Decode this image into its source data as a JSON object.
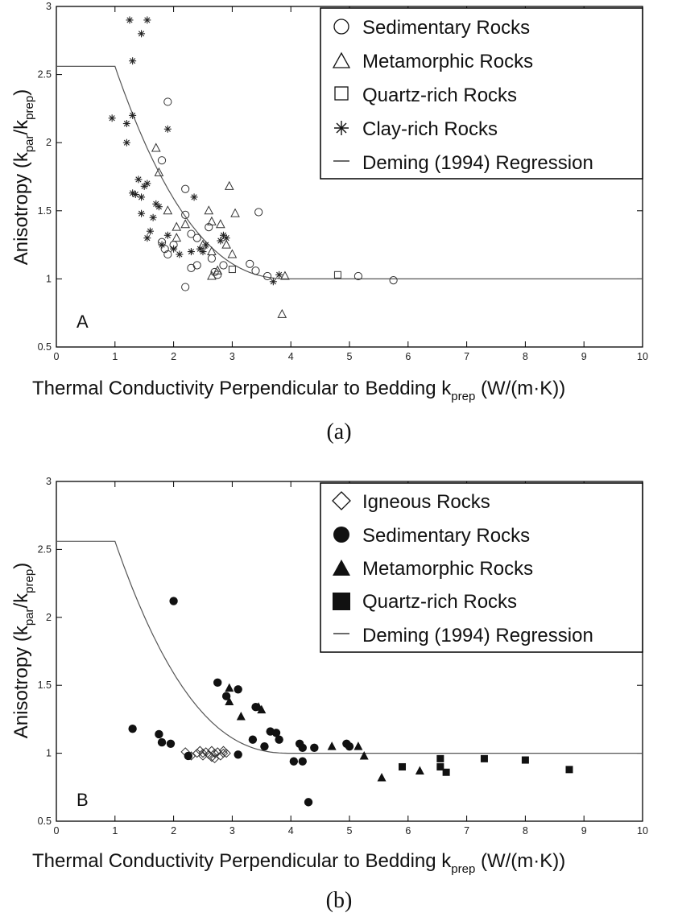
{
  "charts": [
    {
      "id": "a",
      "type": "scatter",
      "panel_label": "A",
      "caption": "(a)",
      "xlabel": {
        "main": "Thermal Conductivity Perpendicular to Bedding k",
        "sub": "prep",
        "tail": " (W/(m·K))"
      },
      "ylabel": {
        "main": "Anisotropy (k",
        "sub1": "par",
        "mid": "/k",
        "sub2": "prep",
        "tail": ")"
      },
      "xlim": [
        0,
        10
      ],
      "ylim": [
        0.5,
        3
      ],
      "xticks": [
        "0",
        "1",
        "2",
        "3",
        "4",
        "5",
        "6",
        "7",
        "8",
        "9",
        "10"
      ],
      "yticks": [
        "0.5",
        "1",
        "1.5",
        "2",
        "2.5",
        "3"
      ],
      "legend": [
        {
          "symbol": "circle-open",
          "label": "Sedimentary Rocks"
        },
        {
          "symbol": "triangle-open",
          "label": "Metamorphic Rocks"
        },
        {
          "symbol": "square-open",
          "label": "Quartz-rich Rocks"
        },
        {
          "symbol": "star",
          "label": "Clay-rich Rocks"
        },
        {
          "symbol": "line",
          "label": "Deming (1994) Regression"
        }
      ],
      "series": [
        {
          "name": "Sedimentary Rocks",
          "marker": "circle-open",
          "points": [
            [
              1.9,
              2.3
            ],
            [
              1.8,
              1.87
            ],
            [
              2.2,
              1.66
            ],
            [
              2.2,
              1.47
            ],
            [
              1.8,
              1.27
            ],
            [
              1.85,
              1.22
            ],
            [
              1.9,
              1.18
            ],
            [
              2.0,
              1.25
            ],
            [
              2.3,
              1.33
            ],
            [
              2.4,
              1.3
            ],
            [
              2.3,
              1.08
            ],
            [
              2.4,
              1.1
            ],
            [
              2.65,
              1.15
            ],
            [
              2.7,
              1.05
            ],
            [
              2.75,
              1.03
            ],
            [
              2.85,
              1.1
            ],
            [
              2.2,
              0.94
            ],
            [
              2.6,
              1.38
            ],
            [
              3.3,
              1.11
            ],
            [
              3.4,
              1.06
            ],
            [
              3.45,
              1.49
            ],
            [
              3.6,
              1.02
            ],
            [
              5.15,
              1.02
            ],
            [
              5.75,
              0.99
            ]
          ]
        },
        {
          "name": "Metamorphic Rocks",
          "marker": "triangle-open",
          "points": [
            [
              1.7,
              1.96
            ],
            [
              1.75,
              1.78
            ],
            [
              1.9,
              1.5
            ],
            [
              2.05,
              1.38
            ],
            [
              2.05,
              1.3
            ],
            [
              2.2,
              1.4
            ],
            [
              2.6,
              1.5
            ],
            [
              2.65,
              1.42
            ],
            [
              2.8,
              1.4
            ],
            [
              2.5,
              1.25
            ],
            [
              2.65,
              1.2
            ],
            [
              2.9,
              1.25
            ],
            [
              2.95,
              1.68
            ],
            [
              3.05,
              1.48
            ],
            [
              2.65,
              1.02
            ],
            [
              2.75,
              1.06
            ],
            [
              3.0,
              1.18
            ],
            [
              3.9,
              1.02
            ],
            [
              3.85,
              0.74
            ]
          ]
        },
        {
          "name": "Quartz-rich Rocks",
          "marker": "square-open",
          "points": [
            [
              3.0,
              1.07
            ],
            [
              4.8,
              1.03
            ]
          ]
        },
        {
          "name": "Clay-rich Rocks",
          "marker": "star",
          "points": [
            [
              1.25,
              2.9
            ],
            [
              1.45,
              2.8
            ],
            [
              1.55,
              2.9
            ],
            [
              1.3,
              2.6
            ],
            [
              0.95,
              2.18
            ],
            [
              1.2,
              2.14
            ],
            [
              1.3,
              2.2
            ],
            [
              1.2,
              2.0
            ],
            [
              1.9,
              2.1
            ],
            [
              1.3,
              1.63
            ],
            [
              1.4,
              1.73
            ],
            [
              1.5,
              1.68
            ],
            [
              1.55,
              1.7
            ],
            [
              1.35,
              1.62
            ],
            [
              1.45,
              1.6
            ],
            [
              1.7,
              1.55
            ],
            [
              1.75,
              1.53
            ],
            [
              1.65,
              1.45
            ],
            [
              1.45,
              1.48
            ],
            [
              1.55,
              1.3
            ],
            [
              1.6,
              1.35
            ],
            [
              1.8,
              1.25
            ],
            [
              1.9,
              1.32
            ],
            [
              2.0,
              1.22
            ],
            [
              2.1,
              1.18
            ],
            [
              2.3,
              1.2
            ],
            [
              2.35,
              1.6
            ],
            [
              2.45,
              1.22
            ],
            [
              2.5,
              1.2
            ],
            [
              2.55,
              1.25
            ],
            [
              2.8,
              1.28
            ],
            [
              2.85,
              1.32
            ],
            [
              2.9,
              1.3
            ],
            [
              3.7,
              0.98
            ],
            [
              3.8,
              1.03
            ]
          ]
        }
      ],
      "regression_label": "Deming (1994) Regression",
      "regression": {
        "plateau": 2.56,
        "x_start": 1.0,
        "x_end": 4.0,
        "floor": 1.0
      }
    },
    {
      "id": "b",
      "type": "scatter",
      "panel_label": "B",
      "caption": "(b)",
      "xlabel": {
        "main": "Thermal Conductivity Perpendicular to Bedding k",
        "sub": "prep",
        "tail": " (W/(m·K))"
      },
      "ylabel": {
        "main": "Anisotropy (k",
        "sub1": "par",
        "mid": "/k",
        "sub2": "prep",
        "tail": ")"
      },
      "xlim": [
        0,
        10
      ],
      "ylim": [
        0.5,
        3
      ],
      "xticks": [
        "0",
        "1",
        "2",
        "3",
        "4",
        "5",
        "6",
        "7",
        "8",
        "9",
        "10"
      ],
      "yticks": [
        "0.5",
        "1",
        "1.5",
        "2",
        "2.5",
        "3"
      ],
      "legend": [
        {
          "symbol": "diamond-open",
          "label": "Igneous Rocks"
        },
        {
          "symbol": "circle-filled",
          "label": "Sedimentary Rocks"
        },
        {
          "symbol": "triangle-filled",
          "label": "Metamorphic Rocks"
        },
        {
          "symbol": "square-filled",
          "label": "Quartz-rich Rocks"
        },
        {
          "symbol": "line",
          "label": "Deming (1994) Regression"
        }
      ],
      "series": [
        {
          "name": "Igneous Rocks",
          "marker": "diamond-open",
          "points": [
            [
              2.2,
              1.01
            ],
            [
              2.3,
              0.98
            ],
            [
              2.4,
              1.0
            ],
            [
              2.45,
              1.02
            ],
            [
              2.5,
              1.0
            ],
            [
              2.55,
              1.01
            ],
            [
              2.6,
              0.99
            ],
            [
              2.65,
              1.02
            ],
            [
              2.7,
              1.0
            ],
            [
              2.75,
              1.01
            ],
            [
              2.8,
              0.98
            ],
            [
              2.85,
              1.02
            ],
            [
              2.9,
              1.0
            ],
            [
              2.65,
              0.97
            ],
            [
              2.7,
              0.96
            ],
            [
              2.5,
              0.98
            ],
            [
              2.85,
              1.0
            ]
          ]
        },
        {
          "name": "Sedimentary Rocks",
          "marker": "circle-filled",
          "points": [
            [
              2.0,
              2.12
            ],
            [
              1.3,
              1.18
            ],
            [
              1.75,
              1.14
            ],
            [
              1.8,
              1.08
            ],
            [
              1.95,
              1.07
            ],
            [
              2.25,
              0.98
            ],
            [
              2.75,
              1.52
            ],
            [
              3.1,
              1.47
            ],
            [
              2.9,
              1.42
            ],
            [
              3.4,
              1.34
            ],
            [
              3.1,
              0.99
            ],
            [
              3.35,
              1.1
            ],
            [
              3.55,
              1.05
            ],
            [
              3.65,
              1.16
            ],
            [
              3.75,
              1.15
            ],
            [
              3.8,
              1.1
            ],
            [
              4.05,
              0.94
            ],
            [
              4.2,
              0.94
            ],
            [
              4.15,
              1.07
            ],
            [
              4.2,
              1.04
            ],
            [
              4.4,
              1.04
            ],
            [
              4.95,
              1.07
            ],
            [
              4.3,
              0.64
            ],
            [
              5.0,
              1.05
            ]
          ]
        },
        {
          "name": "Metamorphic Rocks",
          "marker": "triangle-filled",
          "points": [
            [
              2.95,
              1.48
            ],
            [
              2.95,
              1.38
            ],
            [
              3.15,
              1.27
            ],
            [
              3.45,
              1.34
            ],
            [
              3.5,
              1.32
            ],
            [
              4.7,
              1.05
            ],
            [
              5.15,
              1.05
            ],
            [
              5.25,
              0.98
            ],
            [
              5.55,
              0.82
            ],
            [
              6.2,
              0.87
            ]
          ]
        },
        {
          "name": "Quartz-rich Rocks",
          "marker": "square-filled",
          "points": [
            [
              5.9,
              0.9
            ],
            [
              6.55,
              0.96
            ],
            [
              6.55,
              0.9
            ],
            [
              6.65,
              0.86
            ],
            [
              7.3,
              0.96
            ],
            [
              8.0,
              0.95
            ],
            [
              8.75,
              0.88
            ]
          ]
        }
      ],
      "regression_label": "Deming (1994) Regression",
      "regression": {
        "plateau": 2.56,
        "x_start": 1.0,
        "x_end": 4.0,
        "floor": 1.0
      }
    }
  ]
}
